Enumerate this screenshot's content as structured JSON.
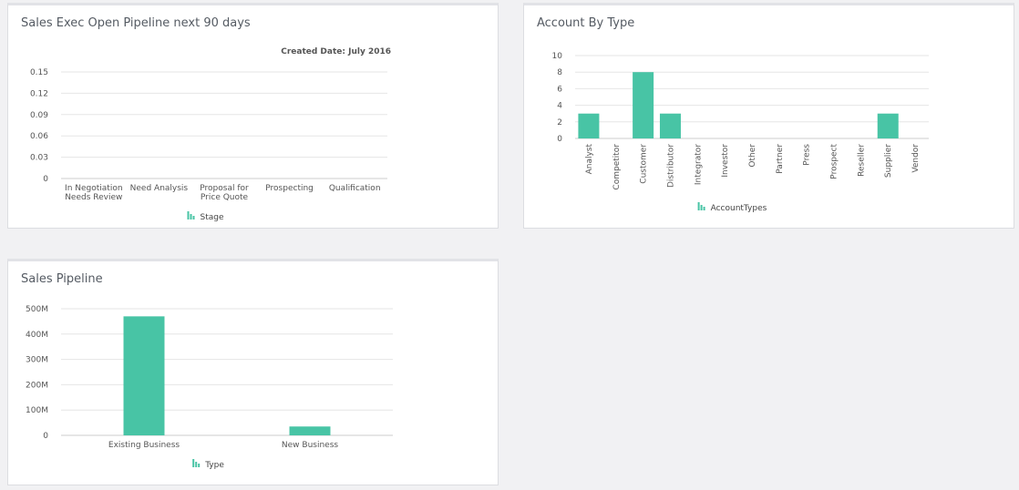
{
  "colors": {
    "bar": "#48c4a5",
    "grid": "#e6e6e6",
    "axis": "#cccccc"
  },
  "cards": {
    "pipeline90": {
      "title": "Sales Exec Open Pipeline next 90 days"
    },
    "accountType": {
      "title": "Account By Type"
    },
    "salesPipeline": {
      "title": "Sales Pipeline"
    }
  },
  "chart_data": [
    {
      "id": "pipeline90",
      "type": "bar",
      "title": "Sales Exec Open Pipeline next 90 days",
      "subtitle": "Created Date: July 2016",
      "categories": [
        [
          "In Negotiation",
          "Needs Review"
        ],
        [
          "Need Analysis"
        ],
        [
          "Proposal for",
          "Price Quote"
        ],
        [
          "Prospecting"
        ],
        [
          "Qualification"
        ]
      ],
      "values": [
        0,
        0,
        0,
        0,
        0
      ],
      "yticks": [
        "0",
        "0.03",
        "0.06",
        "0.09",
        "0.12",
        "0.15"
      ],
      "ylim": [
        0,
        0.15
      ],
      "legend": "Stage",
      "grid": true
    },
    {
      "id": "accountType",
      "type": "bar",
      "title": "Account By Type",
      "categories": [
        "Analyst",
        "Competitor",
        "Customer",
        "Distributor",
        "Integrator",
        "Investor",
        "Other",
        "Partner",
        "Press",
        "Prospect",
        "Reseller",
        "Supplier",
        "Vendor"
      ],
      "values": [
        3,
        0,
        8,
        3,
        0,
        0,
        0,
        0,
        0,
        0,
        0,
        3,
        0
      ],
      "yticks": [
        "0",
        "2",
        "4",
        "6",
        "8",
        "10"
      ],
      "ylim": [
        0,
        10
      ],
      "legend": "AccountTypes",
      "grid": true
    },
    {
      "id": "salesPipeline",
      "type": "bar",
      "title": "Sales Pipeline",
      "categories": [
        "Existing Business",
        "New Business"
      ],
      "values": [
        470000000,
        35000000
      ],
      "yticks": [
        "0",
        "100M",
        "200M",
        "300M",
        "400M",
        "500M"
      ],
      "ylim": [
        0,
        500000000
      ],
      "legend": "Type",
      "grid": true
    }
  ]
}
